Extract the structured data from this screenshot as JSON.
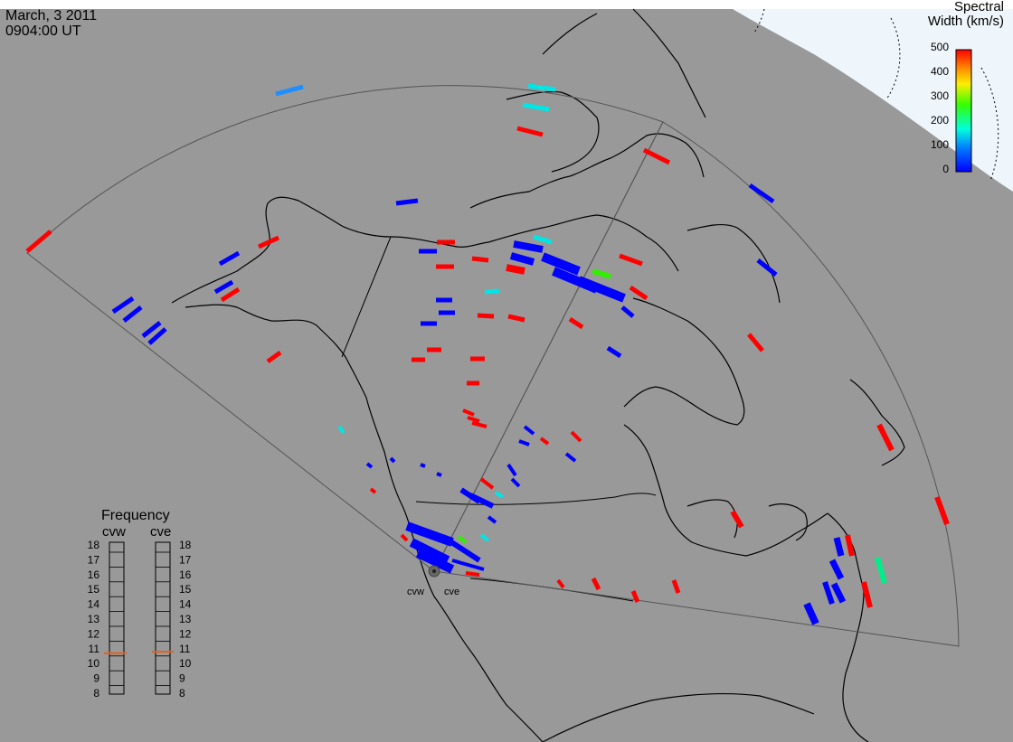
{
  "header": {
    "date": "March, 3 2011",
    "time": "0904:00 UT"
  },
  "colorbar": {
    "title_line1": "Spectral",
    "title_line2": "Width (km/s)",
    "ticks": [
      "500",
      "400",
      "300",
      "200",
      "100",
      "0"
    ],
    "colors": [
      "#ff0000",
      "#ff8800",
      "#ffee00",
      "#33ff00",
      "#00ffdd",
      "#0080ff",
      "#0000ff"
    ]
  },
  "radars": {
    "west": "cvw",
    "east": "cve"
  },
  "frequency": {
    "title": "Frequency",
    "west_label": "cvw",
    "east_label": "cve",
    "ticks": [
      "18",
      "17",
      "16",
      "15",
      "14",
      "13",
      "12",
      "11",
      "10",
      "9",
      "8"
    ],
    "west_value_mhz": 10.7,
    "east_value_mhz": 10.8,
    "marker_color": "#e8601a"
  },
  "colors": {
    "background": "#999999",
    "coastline": "#000000",
    "fov": "#555555",
    "polar_cap": "#eef6fb"
  }
}
